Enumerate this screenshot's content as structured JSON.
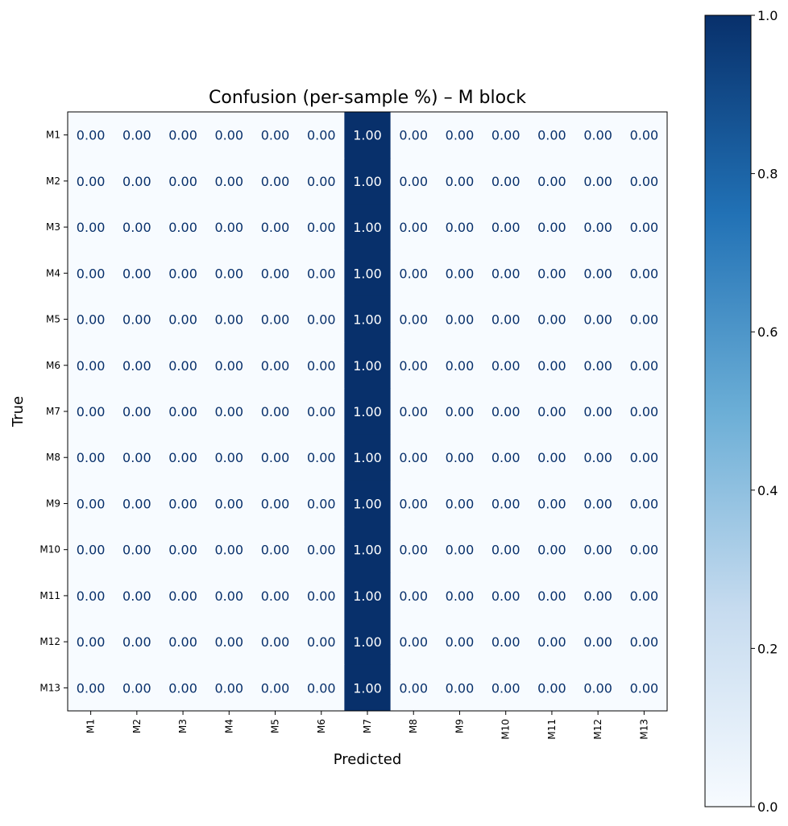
{
  "chart_data": {
    "type": "heatmap",
    "title": "Confusion (per-sample %) – M block",
    "xlabel": "Predicted",
    "ylabel": "True",
    "x_categories": [
      "M1",
      "M2",
      "M3",
      "M4",
      "M5",
      "M6",
      "M7",
      "M8",
      "M9",
      "M10",
      "M11",
      "M12",
      "M13"
    ],
    "y_categories": [
      "M1",
      "M2",
      "M3",
      "M4",
      "M5",
      "M6",
      "M7",
      "M8",
      "M9",
      "M10",
      "M11",
      "M12",
      "M13"
    ],
    "values": [
      [
        0,
        0,
        0,
        0,
        0,
        0,
        1,
        0,
        0,
        0,
        0,
        0,
        0
      ],
      [
        0,
        0,
        0,
        0,
        0,
        0,
        1,
        0,
        0,
        0,
        0,
        0,
        0
      ],
      [
        0,
        0,
        0,
        0,
        0,
        0,
        1,
        0,
        0,
        0,
        0,
        0,
        0
      ],
      [
        0,
        0,
        0,
        0,
        0,
        0,
        1,
        0,
        0,
        0,
        0,
        0,
        0
      ],
      [
        0,
        0,
        0,
        0,
        0,
        0,
        1,
        0,
        0,
        0,
        0,
        0,
        0
      ],
      [
        0,
        0,
        0,
        0,
        0,
        0,
        1,
        0,
        0,
        0,
        0,
        0,
        0
      ],
      [
        0,
        0,
        0,
        0,
        0,
        0,
        1,
        0,
        0,
        0,
        0,
        0,
        0
      ],
      [
        0,
        0,
        0,
        0,
        0,
        0,
        1,
        0,
        0,
        0,
        0,
        0,
        0
      ],
      [
        0,
        0,
        0,
        0,
        0,
        0,
        1,
        0,
        0,
        0,
        0,
        0,
        0
      ],
      [
        0,
        0,
        0,
        0,
        0,
        0,
        1,
        0,
        0,
        0,
        0,
        0,
        0
      ],
      [
        0,
        0,
        0,
        0,
        0,
        0,
        1,
        0,
        0,
        0,
        0,
        0,
        0
      ],
      [
        0,
        0,
        0,
        0,
        0,
        0,
        1,
        0,
        0,
        0,
        0,
        0,
        0
      ],
      [
        0,
        0,
        0,
        0,
        0,
        0,
        1,
        0,
        0,
        0,
        0,
        0,
        0
      ]
    ],
    "value_format_decimals": 2,
    "vmin": 0,
    "vmax": 1,
    "colormap": "Blues",
    "colormap_low": "#f7fbff",
    "colormap_high": "#08306b",
    "colorbar_ticks": [
      "0.0",
      "0.2",
      "0.4",
      "0.6",
      "0.8",
      "1.0"
    ],
    "colorbar_placement": "right",
    "grid": false
  }
}
